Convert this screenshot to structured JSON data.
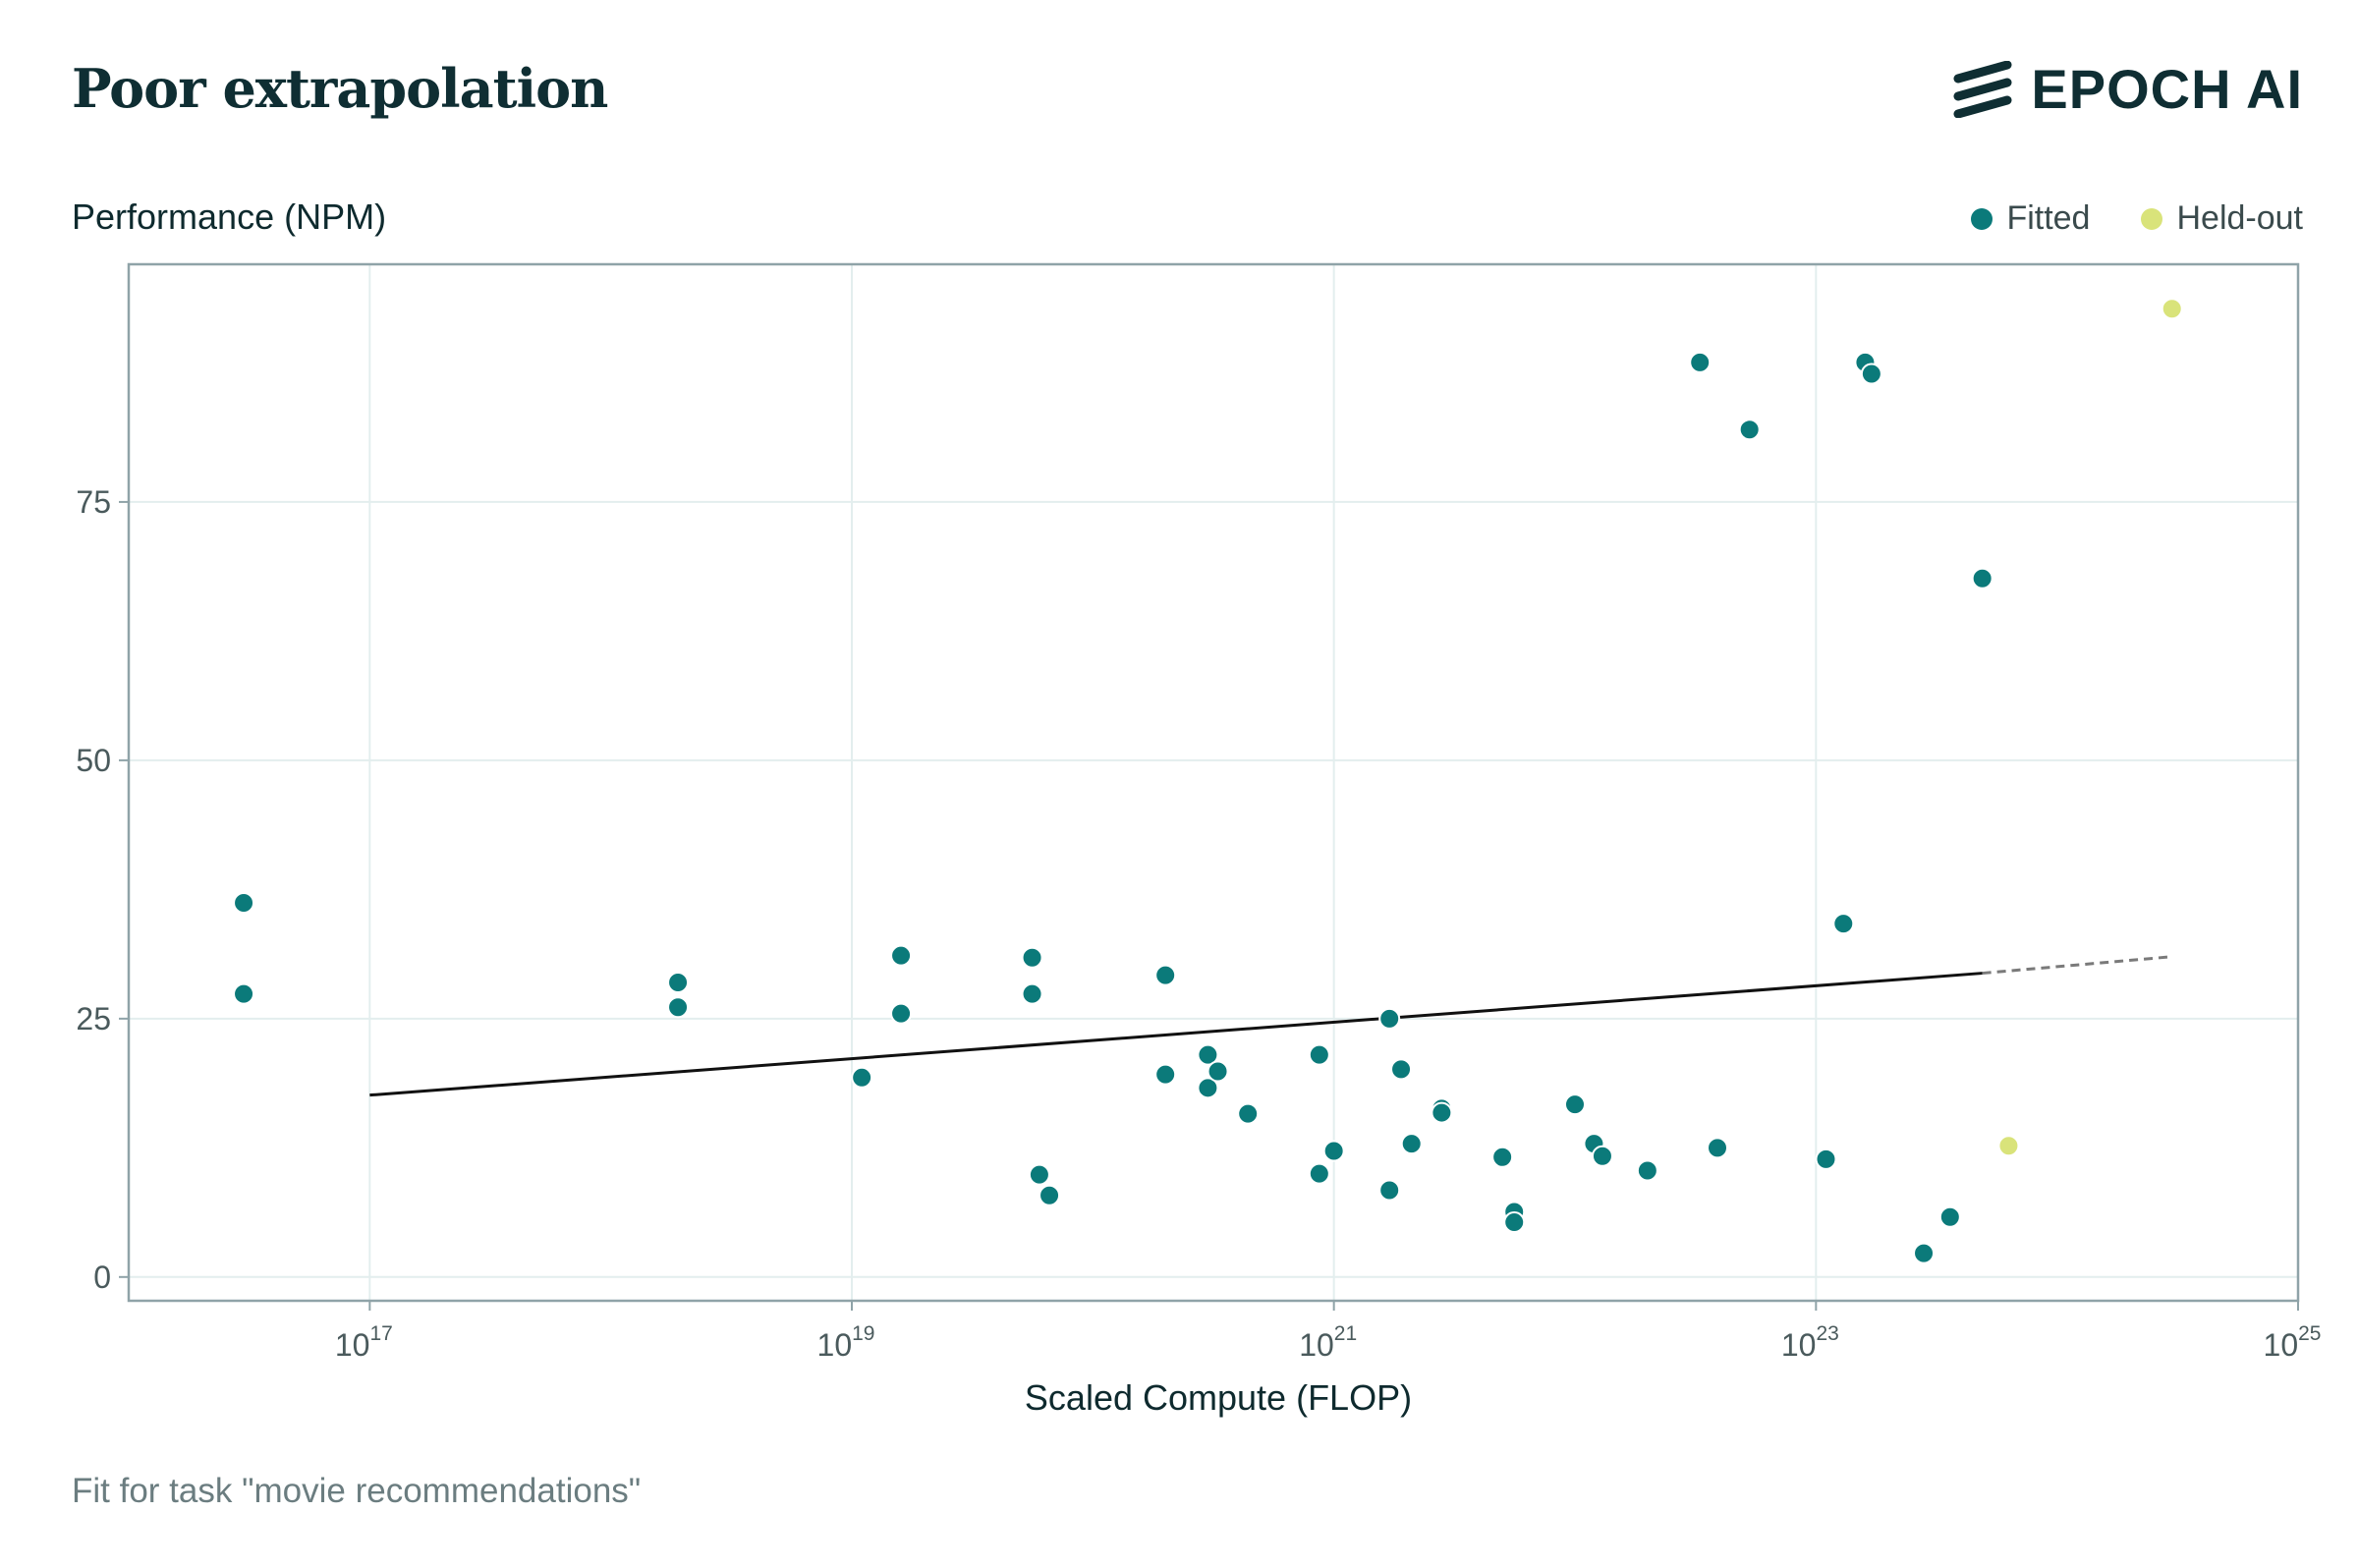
{
  "header": {
    "title": "Poor extrapolation",
    "brand": "EPOCH AI"
  },
  "caption": "Fit for task \"movie recommendations\"",
  "colors": {
    "fitted": "#0b7a7a",
    "held_out": "#d9e37a",
    "grid": "#e3eeee",
    "frame": "#8fa3a8",
    "fit_line": "#111111",
    "extrapolation": "#7a7a7a"
  },
  "chart_data": {
    "type": "scatter",
    "ylabel": "Performance (NPM)",
    "xlabel": "Scaled Compute (FLOP)",
    "x_scale": "log",
    "xlim": [
      1e+16,
      1e+25
    ],
    "ylim": [
      -2.3,
      98
    ],
    "x_ticks": [
      {
        "base": "10",
        "exp": "17",
        "value": 1e+17
      },
      {
        "base": "10",
        "exp": "19",
        "value": 1e+19
      },
      {
        "base": "10",
        "exp": "21",
        "value": 1e+21
      },
      {
        "base": "10",
        "exp": "23",
        "value": 1e+23
      },
      {
        "base": "10",
        "exp": "25",
        "value": 1e+25
      }
    ],
    "y_ticks": [
      0,
      25,
      50,
      75
    ],
    "grid": true,
    "legend": {
      "placement": "top-right",
      "entries": [
        {
          "label": "Fitted",
          "color": "#0b7a7a"
        },
        {
          "label": "Held-out",
          "color": "#d9e37a"
        }
      ]
    },
    "series": [
      {
        "name": "Fitted",
        "color": "#0b7a7a",
        "points": [
          [
            3e+16,
            36.2
          ],
          [
            3e+16,
            27.4
          ],
          [
            1.9e+18,
            28.5
          ],
          [
            1.9e+18,
            26.1
          ],
          [
            1.1e+19,
            19.3
          ],
          [
            1.6e+19,
            31.1
          ],
          [
            1.6e+19,
            25.5
          ],
          [
            5.6e+19,
            30.9
          ],
          [
            5.6e+19,
            27.4
          ],
          [
            6e+19,
            9.9
          ],
          [
            6.6e+19,
            7.9
          ],
          [
            2e+20,
            29.2
          ],
          [
            2e+20,
            19.6
          ],
          [
            3e+20,
            21.5
          ],
          [
            3e+20,
            18.3
          ],
          [
            3.3e+20,
            19.9
          ],
          [
            4.4e+20,
            15.8
          ],
          [
            8.7e+20,
            21.5
          ],
          [
            8.7e+20,
            10.0
          ],
          [
            1e+21,
            12.2
          ],
          [
            1.7e+21,
            25.0
          ],
          [
            1.7e+21,
            8.4
          ],
          [
            1.9e+21,
            20.1
          ],
          [
            2.1e+21,
            12.9
          ],
          [
            2.8e+21,
            16.3
          ],
          [
            2.8e+21,
            15.9
          ],
          [
            5e+21,
            11.6
          ],
          [
            5.6e+21,
            6.3
          ],
          [
            5.6e+21,
            5.3
          ],
          [
            1e+22,
            16.7
          ],
          [
            1.2e+22,
            12.9
          ],
          [
            1.3e+22,
            11.7
          ],
          [
            2e+22,
            10.3
          ],
          [
            3.3e+22,
            88.5
          ],
          [
            3.9e+22,
            12.5
          ],
          [
            5.3e+22,
            82.0
          ],
          [
            1.1e+23,
            11.4
          ],
          [
            1.3e+23,
            34.2
          ],
          [
            1.6e+23,
            88.5
          ],
          [
            1.7e+23,
            87.4
          ],
          [
            2.8e+23,
            2.3
          ],
          [
            3.6e+23,
            5.8
          ],
          [
            4.9e+23,
            67.6
          ]
        ]
      },
      {
        "name": "Held-out",
        "color": "#d9e37a",
        "points": [
          [
            6.3e+23,
            12.7
          ],
          [
            3e+24,
            93.7
          ]
        ]
      }
    ],
    "fit_line": {
      "solid": [
        [
          1e+17,
          17.6
        ],
        [
          4.9e+23,
          29.4
        ]
      ],
      "dashed": [
        [
          4.9e+23,
          29.4
        ],
        [
          3e+24,
          31.0
        ]
      ]
    }
  }
}
